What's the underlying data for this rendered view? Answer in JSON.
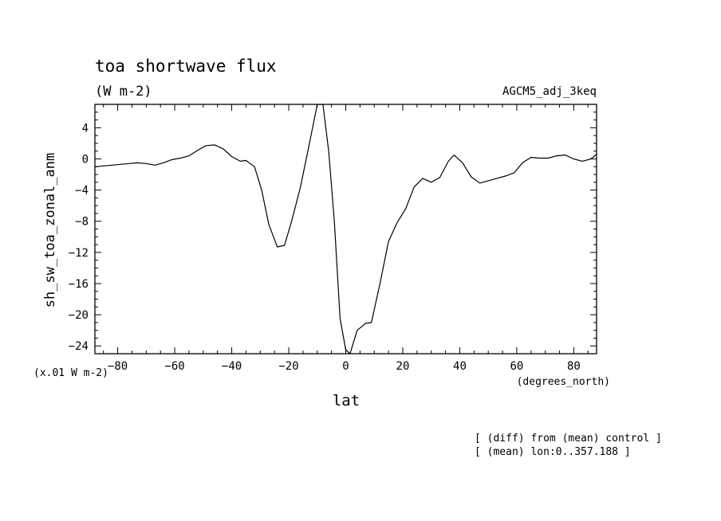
{
  "chart_data": {
    "type": "line",
    "title": "toa shortwave flux",
    "units": "(W m-2)",
    "dataset": "AGCM5_adj_3keq",
    "ylabel": "sh_sw_toa_zonal_anm",
    "yscale_note": "(x.01 W m-2)",
    "xlabel": "lat",
    "xunits": "(degrees_north)",
    "notes": [
      "[ (diff) from (mean) control ]",
      "[ (mean) lon:0..357.188 ]"
    ],
    "xlim": [
      -88,
      88
    ],
    "ylim": [
      -25,
      7
    ],
    "xticks": [
      -80,
      -60,
      -40,
      -20,
      0,
      20,
      40,
      60,
      80
    ],
    "yticks": [
      4,
      0,
      -4,
      -8,
      -12,
      -16,
      -20,
      -24
    ],
    "grid": false,
    "series": [
      {
        "x": [
          -88,
          -85,
          -82,
          -79,
          -76,
          -73,
          -70,
          -67,
          -64,
          -61,
          -58,
          -55,
          -52,
          -49,
          -46,
          -43,
          -40,
          -37,
          -35,
          -32,
          -29.5,
          -27,
          -24,
          -21.5,
          -19,
          -16,
          -13,
          -10,
          -8,
          -6,
          -4,
          -2,
          0,
          1.5,
          4,
          7,
          9,
          12,
          15,
          18,
          21,
          24,
          27,
          30,
          33,
          36,
          38,
          41,
          44,
          47,
          50,
          53,
          56,
          59,
          62,
          65,
          68,
          71,
          74,
          77,
          80,
          83,
          86,
          88
        ],
        "y": [
          -1.0,
          -0.9,
          -0.8,
          -0.7,
          -0.6,
          -0.5,
          -0.6,
          -0.8,
          -0.5,
          -0.1,
          0.1,
          0.4,
          1.1,
          1.7,
          1.8,
          1.3,
          0.3,
          -0.3,
          -0.2,
          -1.0,
          -4.0,
          -8.4,
          -11.3,
          -11.1,
          -8.0,
          -3.8,
          1.5,
          7.0,
          7.0,
          1.0,
          -8.0,
          -20.5,
          -24.5,
          -25.0,
          -22.0,
          -21.1,
          -21.0,
          -16.0,
          -10.6,
          -8.2,
          -6.4,
          -3.6,
          -2.5,
          -3.0,
          -2.4,
          -0.3,
          0.5,
          -0.5,
          -2.3,
          -3.1,
          -2.8,
          -2.5,
          -2.2,
          -1.8,
          -0.5,
          0.2,
          0.1,
          0.1,
          0.4,
          0.5,
          0.0,
          -0.3,
          0.0,
          0.6
        ]
      }
    ]
  }
}
